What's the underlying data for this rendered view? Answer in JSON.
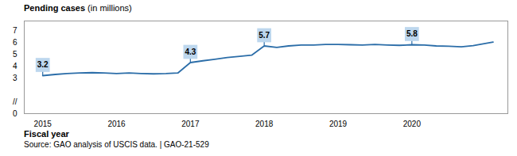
{
  "chart_data": {
    "type": "line",
    "title": "Pending cases",
    "subtitle": "(in millions)",
    "xlabel": "Fiscal year",
    "source": "Source: GAO analysis of USCIS data.  |  GAO-21-529",
    "x": [
      2015.0,
      2015.17,
      2015.33,
      2015.5,
      2015.67,
      2015.83,
      2016.0,
      2016.17,
      2016.33,
      2016.5,
      2016.67,
      2016.83,
      2017.0,
      2017.17,
      2017.33,
      2017.5,
      2017.67,
      2017.83,
      2018.0,
      2018.17,
      2018.33,
      2018.5,
      2018.67,
      2018.83,
      2019.0,
      2019.17,
      2019.33,
      2019.5,
      2019.67,
      2019.83,
      2020.0,
      2020.17,
      2020.33,
      2020.5,
      2020.67,
      2020.83,
      2021.1
    ],
    "values": [
      3.2,
      3.3,
      3.38,
      3.42,
      3.45,
      3.42,
      3.38,
      3.42,
      3.38,
      3.35,
      3.37,
      3.42,
      4.3,
      4.45,
      4.58,
      4.72,
      4.82,
      4.92,
      5.7,
      5.58,
      5.7,
      5.78,
      5.77,
      5.82,
      5.83,
      5.8,
      5.78,
      5.82,
      5.78,
      5.75,
      5.8,
      5.77,
      5.7,
      5.68,
      5.62,
      5.72,
      6.02
    ],
    "color": "#2B6DA8",
    "xlim": [
      2014.75,
      2021.3
    ],
    "xticks": [
      2015,
      2016,
      2017,
      2018,
      2019,
      2020
    ],
    "ylim": [
      0,
      7.8
    ],
    "yticks": [
      0,
      {
        "value": 1,
        "label": "//"
      },
      3,
      4,
      5,
      6,
      7
    ],
    "grid": false,
    "annotations": [
      {
        "x": 2015.0,
        "y": 3.2,
        "label": "3.2",
        "color": "#BDD7EE"
      },
      {
        "x": 2017.0,
        "y": 4.3,
        "label": "4.3",
        "color": "#BDD7EE"
      },
      {
        "x": 2018.0,
        "y": 5.7,
        "label": "5.7",
        "color": "#BDD7EE"
      },
      {
        "x": 2020.0,
        "y": 5.8,
        "label": "5.8",
        "color": "#BDD7EE"
      }
    ]
  }
}
